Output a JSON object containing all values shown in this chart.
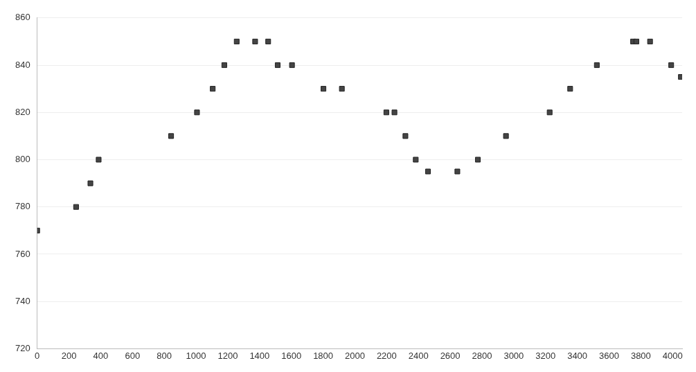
{
  "chart_data": {
    "type": "scatter",
    "x": [
      0,
      245,
      335,
      387,
      843,
      1006,
      1105,
      1178,
      1256,
      1372,
      1454,
      1514,
      1604,
      1802,
      1918,
      2198,
      2249,
      2318,
      2383,
      2460,
      2645,
      2774,
      2951,
      3226,
      3355,
      3523,
      3751,
      3772,
      3858,
      3991,
      4052
    ],
    "values": [
      770,
      780,
      790,
      800,
      810,
      820,
      830,
      840,
      850,
      850,
      850,
      840,
      840,
      830,
      830,
      820,
      820,
      810,
      800,
      795,
      795,
      800,
      810,
      820,
      830,
      840,
      850,
      850,
      850,
      840,
      835
    ],
    "color": "#444444",
    "marker": "square",
    "xlim": [
      0,
      4060
    ],
    "xticks": [
      0,
      200,
      400,
      600,
      800,
      1000,
      1200,
      1400,
      1600,
      1800,
      2000,
      2200,
      2400,
      2600,
      2800,
      3000,
      3200,
      3400,
      3600,
      3800,
      4000
    ],
    "ylim": [
      720,
      860
    ],
    "yticks": [
      720,
      740,
      760,
      780,
      800,
      820,
      840,
      860
    ],
    "grid": "y",
    "legend": false
  }
}
